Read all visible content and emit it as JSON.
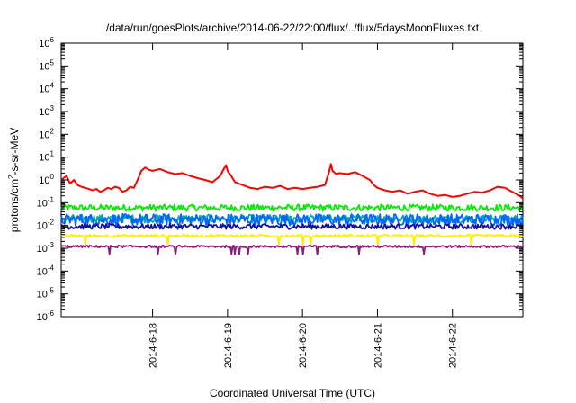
{
  "chart_data": {
    "type": "line",
    "title": "/data/run/goesPlots/archive/2014-06-22/22:00/flux/../flux/5daysMoonFluxes.txt",
    "xlabel": "Coordinated Universal Time (UTC)",
    "ylabel_parts": [
      "protons/cm",
      "2",
      "-s-sr-MeV"
    ],
    "y_scale": "log",
    "ylim": [
      1e-06,
      1000000.0
    ],
    "y_ticks": [
      {
        "base": "10",
        "exp": "-6",
        "value": -6
      },
      {
        "base": "10",
        "exp": "-5",
        "value": -5
      },
      {
        "base": "10",
        "exp": "-4",
        "value": -4
      },
      {
        "base": "10",
        "exp": "-3",
        "value": -3
      },
      {
        "base": "10",
        "exp": "-2",
        "value": -2
      },
      {
        "base": "10",
        "exp": "-1",
        "value": -1
      },
      {
        "base": "10",
        "exp": "0",
        "value": 0
      },
      {
        "base": "10",
        "exp": "1",
        "value": 1
      },
      {
        "base": "10",
        "exp": "2",
        "value": 2
      },
      {
        "base": "10",
        "exp": "3",
        "value": 3
      },
      {
        "base": "10",
        "exp": "4",
        "value": 4
      },
      {
        "base": "10",
        "exp": "5",
        "value": 5
      },
      {
        "base": "10",
        "exp": "6",
        "value": 6
      }
    ],
    "xlim_days": [
      -0.22,
      5.94
    ],
    "x_ticks": [
      {
        "label": "2014-6-18",
        "day": 1
      },
      {
        "label": "2014-6-19",
        "day": 2
      },
      {
        "label": "2014-6-20",
        "day": 3
      },
      {
        "label": "2014-6-21",
        "day": 4
      },
      {
        "label": "2014-6-22",
        "day": 5
      }
    ],
    "grid": false,
    "legend": "none",
    "series": [
      {
        "color": "#ff0000",
        "style": "smooth",
        "x": [
          -0.22,
          -0.15,
          -0.1,
          -0.05,
          0.0,
          0.05,
          0.1,
          0.15,
          0.2,
          0.25,
          0.3,
          0.35,
          0.4,
          0.45,
          0.5,
          0.55,
          0.6,
          0.65,
          0.7,
          0.75,
          0.8,
          0.85,
          0.9,
          0.95,
          1.0,
          1.1,
          1.2,
          1.3,
          1.4,
          1.5,
          1.6,
          1.7,
          1.8,
          1.9,
          1.95,
          1.98,
          2.0,
          2.05,
          2.1,
          2.2,
          2.3,
          2.4,
          2.5,
          2.6,
          2.7,
          2.8,
          2.9,
          3.0,
          3.1,
          3.2,
          3.3,
          3.35,
          3.38,
          3.4,
          3.45,
          3.5,
          3.6,
          3.7,
          3.8,
          3.9,
          3.95,
          4.0,
          4.1,
          4.2,
          4.3,
          4.4,
          4.5,
          4.6,
          4.7,
          4.8,
          4.9,
          5.0,
          5.1,
          5.2,
          5.3,
          5.4,
          5.5,
          5.6,
          5.7,
          5.8,
          5.9,
          5.94
        ],
        "y": [
          1.0,
          1.5,
          0.7,
          1.0,
          0.6,
          0.5,
          0.45,
          0.4,
          0.35,
          0.4,
          0.3,
          0.35,
          0.45,
          0.4,
          0.5,
          0.45,
          0.3,
          0.35,
          0.5,
          0.45,
          1.0,
          2.5,
          3.5,
          2.8,
          2.5,
          3.0,
          2.2,
          1.8,
          2.0,
          1.5,
          1.2,
          1.0,
          0.8,
          1.5,
          3.0,
          4.5,
          2.5,
          1.5,
          0.8,
          0.6,
          0.45,
          0.4,
          0.5,
          0.45,
          0.55,
          0.4,
          0.45,
          0.4,
          0.45,
          0.5,
          0.6,
          2.0,
          5.0,
          2.5,
          1.8,
          2.0,
          1.8,
          2.2,
          1.5,
          1.0,
          0.6,
          0.45,
          0.35,
          0.3,
          0.35,
          0.25,
          0.3,
          0.35,
          0.25,
          0.2,
          0.22,
          0.18,
          0.2,
          0.25,
          0.3,
          0.28,
          0.35,
          0.5,
          0.45,
          0.3,
          0.2,
          0.15
        ]
      },
      {
        "color": "#00ee00",
        "style": "noisy",
        "level": 0.06,
        "spread": 1.4
      },
      {
        "color": "#00aaaa",
        "style": "noisy",
        "level": 0.02,
        "spread": 1.5
      },
      {
        "color": "#0066ff",
        "style": "noisy",
        "level": 0.018,
        "spread": 1.8
      },
      {
        "color": "#1111aa",
        "style": "noisy",
        "level": 0.009,
        "spread": 1.3
      },
      {
        "color": "#ffee00",
        "style": "spiky",
        "level": 0.0035,
        "spread": 1.15,
        "dip": 0.4
      },
      {
        "color": "#882277",
        "style": "spiky",
        "level": 0.0012,
        "spread": 1.12,
        "dip": 0.45
      }
    ]
  }
}
